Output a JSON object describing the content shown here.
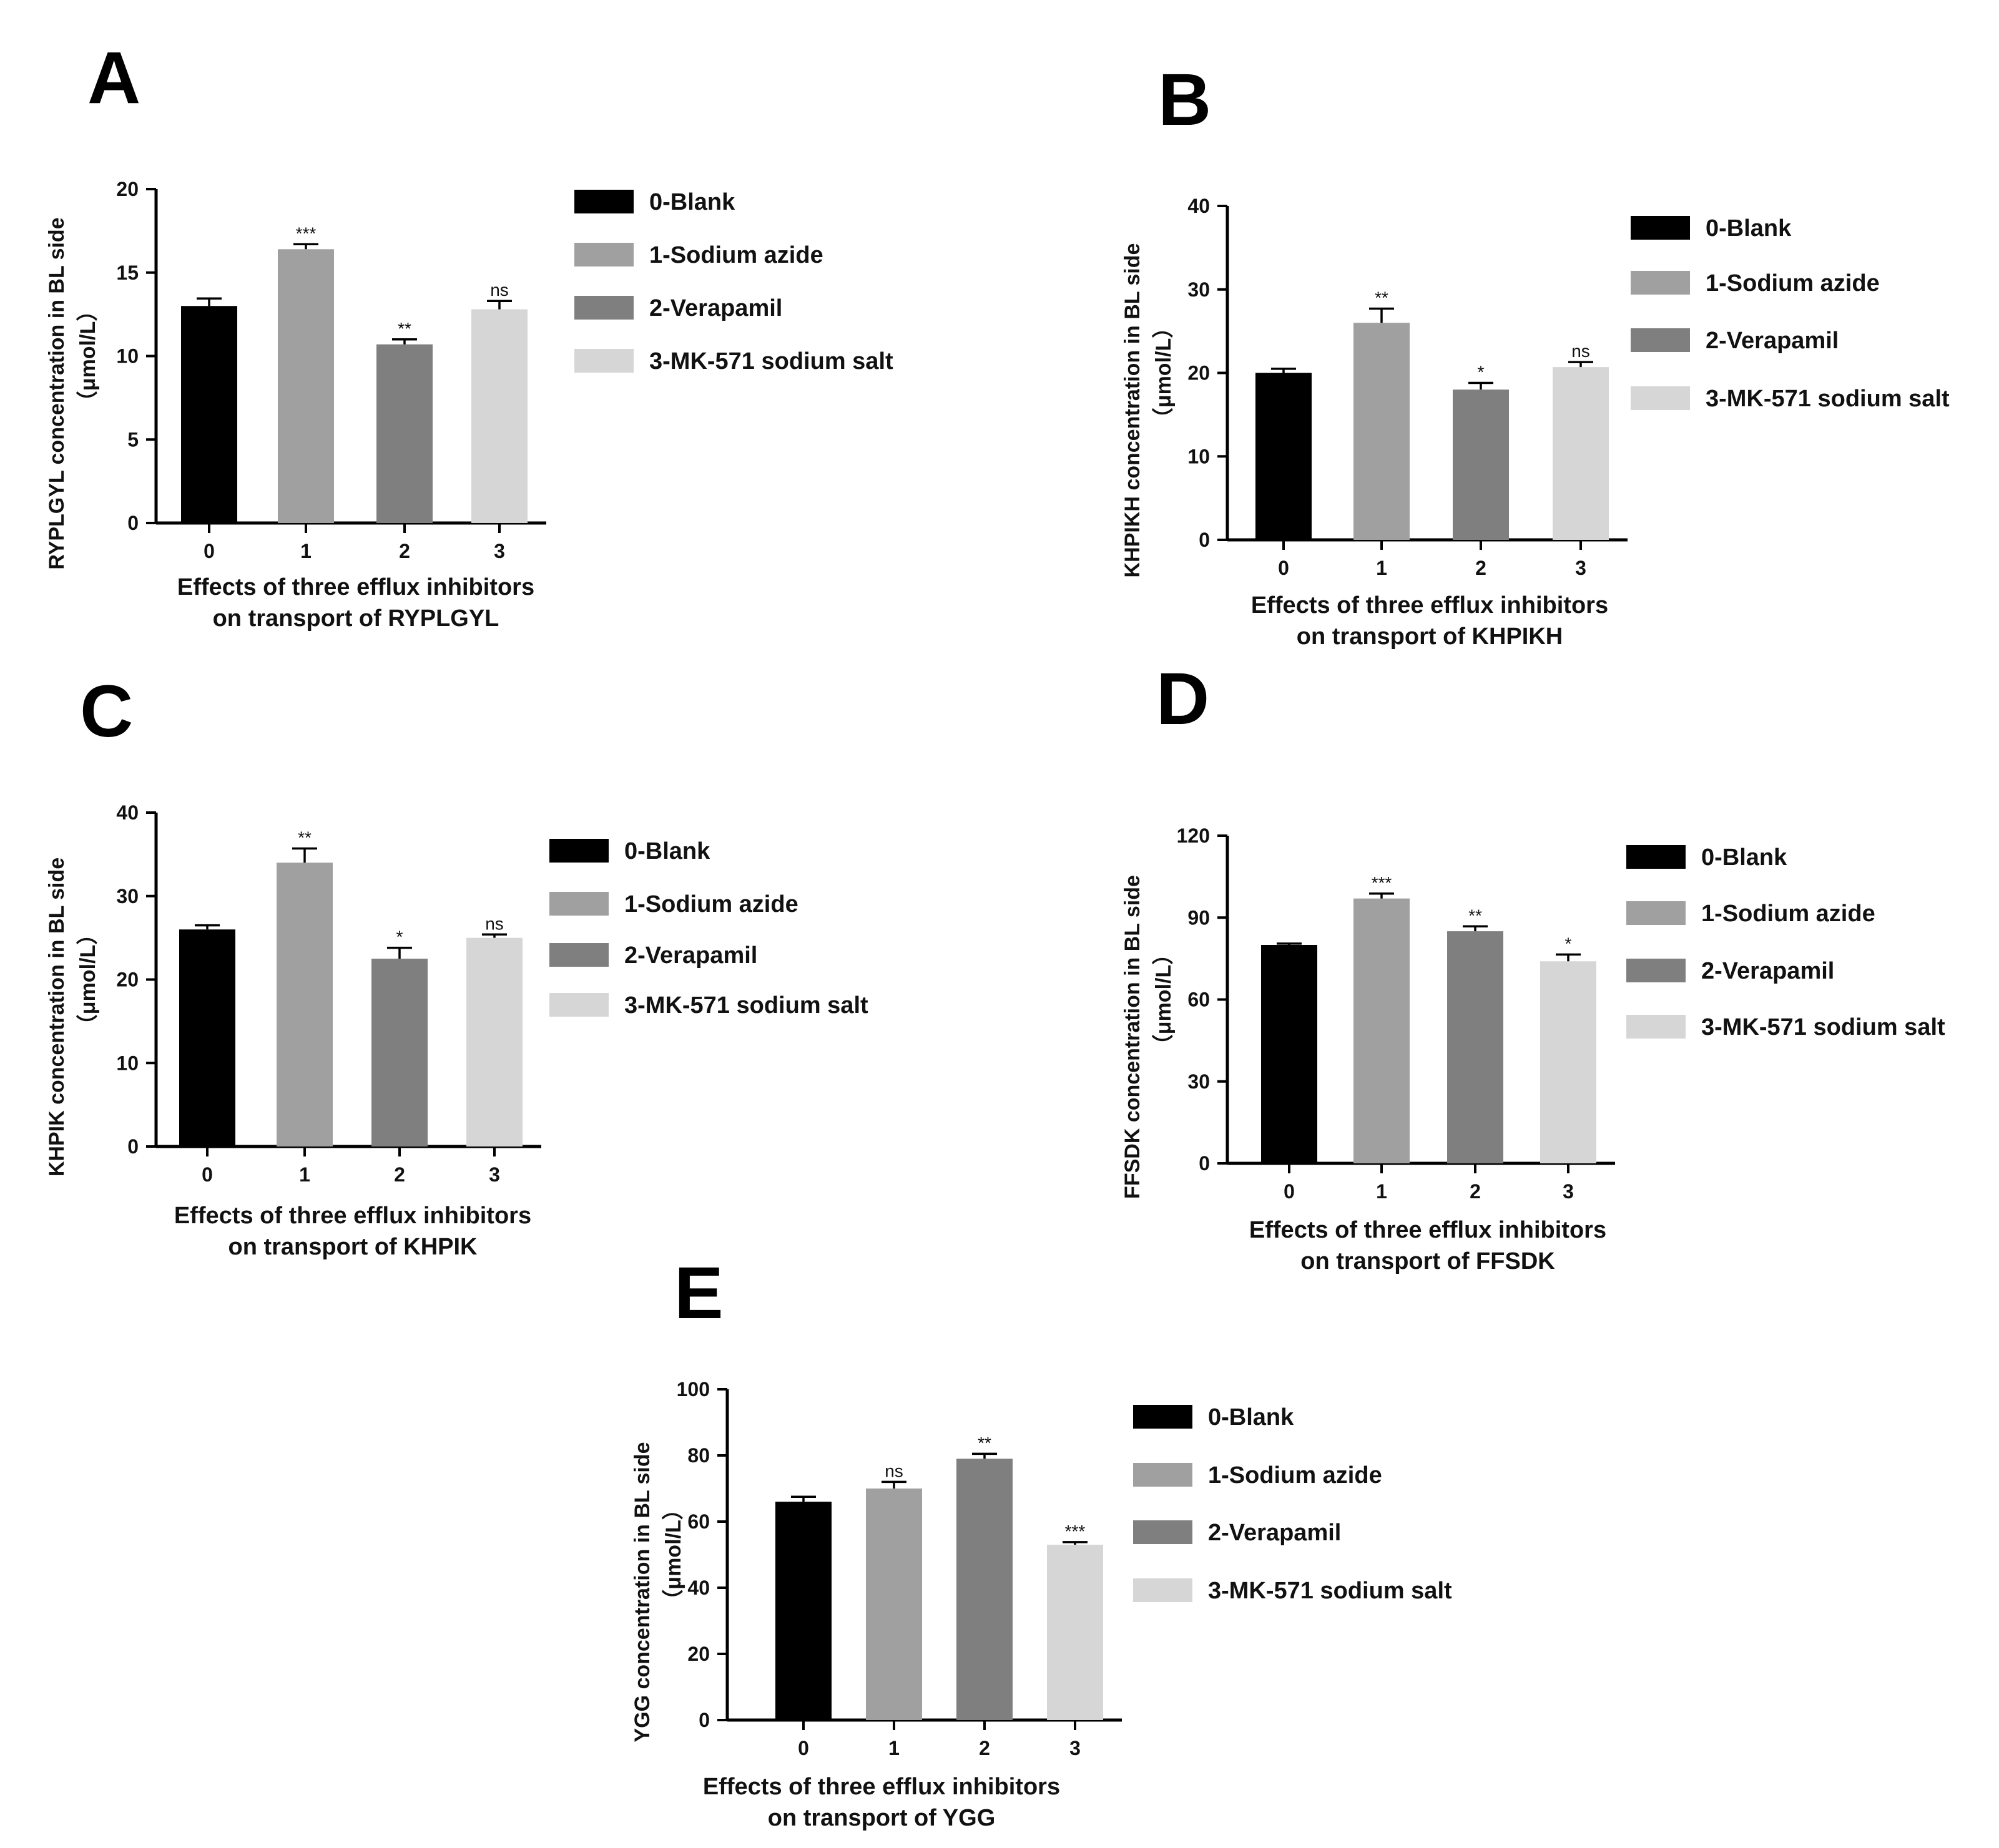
{
  "colors": {
    "blank": "#000000",
    "sodium_azide": "#a0a0a0",
    "verapamil": "#7f7f7f",
    "mk571": "#d6d6d6"
  },
  "chart_data": [
    {
      "type": "bar",
      "panel": "A",
      "categories": [
        "0",
        "1",
        "2",
        "3"
      ],
      "values": [
        13.0,
        16.4,
        10.7,
        12.8
      ],
      "errors": [
        0.45,
        0.3,
        0.3,
        0.5
      ],
      "significance": [
        "",
        "***",
        "**",
        "ns"
      ],
      "ylabel": [
        "RYPLGYL concentration in BL side",
        "（μmol/L）"
      ],
      "xlabel": [
        "Effects of three efflux inhibitors",
        "on transport of RYPLGYL"
      ],
      "ylim": [
        0,
        20
      ],
      "yticks": [
        "0",
        "5",
        "10",
        "15",
        "20"
      ],
      "legend": [
        "0-Blank",
        "1-Sodium azide",
        "2-Verapamil",
        "3-MK-571 sodium salt"
      ]
    },
    {
      "type": "bar",
      "panel": "B",
      "categories": [
        "0",
        "1",
        "2",
        "3"
      ],
      "values": [
        20.0,
        26.0,
        18.0,
        20.7
      ],
      "errors": [
        0.5,
        1.7,
        0.8,
        0.6
      ],
      "significance": [
        "",
        "**",
        "*",
        "ns"
      ],
      "ylabel": [
        "KHPIKH concentration in BL side",
        "（μmol/L）"
      ],
      "xlabel": [
        "Effects of three efflux inhibitors",
        "on transport of KHPIKH"
      ],
      "ylim": [
        0,
        40
      ],
      "yticks": [
        "0",
        "10",
        "20",
        "30",
        "40"
      ],
      "legend": [
        "0-Blank",
        "1-Sodium azide",
        "2-Verapamil",
        "3-MK-571 sodium salt"
      ]
    },
    {
      "type": "bar",
      "panel": "C",
      "categories": [
        "0",
        "1",
        "2",
        "3"
      ],
      "values": [
        26.0,
        34.0,
        22.5,
        25.0
      ],
      "errors": [
        0.5,
        1.7,
        1.3,
        0.4
      ],
      "significance": [
        "",
        "**",
        "*",
        "ns"
      ],
      "ylabel": [
        "KHPIK concentration in BL side",
        "（μmol/L）"
      ],
      "xlabel": [
        "Effects of three efflux inhibitors",
        "on transport of KHPIK"
      ],
      "ylim": [
        0,
        40
      ],
      "yticks": [
        "0",
        "10",
        "20",
        "30",
        "40"
      ],
      "legend": [
        "0-Blank",
        "1-Sodium azide",
        "2-Verapamil",
        "3-MK-571 sodium salt"
      ]
    },
    {
      "type": "bar",
      "panel": "D",
      "categories": [
        "0",
        "1",
        "2",
        "3"
      ],
      "values": [
        80.0,
        97.0,
        85.0,
        74.0
      ],
      "errors": [
        0.5,
        1.8,
        1.8,
        2.5
      ],
      "significance": [
        "",
        "***",
        "**",
        "*"
      ],
      "ylabel": [
        "FFSDK concentration in BL side",
        "（μmol/L）"
      ],
      "xlabel": [
        "Effects of three efflux inhibitors",
        "on transport of FFSDK"
      ],
      "ylim": [
        0,
        120
      ],
      "yticks": [
        "0",
        "30",
        "60",
        "90",
        "120"
      ],
      "legend": [
        "0-Blank",
        "1-Sodium azide",
        "2-Verapamil",
        "3-MK-571 sodium salt"
      ]
    },
    {
      "type": "bar",
      "panel": "E",
      "categories": [
        "0",
        "1",
        "2",
        "3"
      ],
      "values": [
        66.0,
        70.0,
        79.0,
        53.0
      ],
      "errors": [
        1.5,
        2.0,
        1.5,
        0.8
      ],
      "significance": [
        "",
        "ns",
        "**",
        "***"
      ],
      "ylabel": [
        "YGG concentration in BL side",
        "（μmol/L）"
      ],
      "xlabel": [
        "Effects of three efflux inhibitors",
        "on transport of YGG"
      ],
      "ylim": [
        0,
        100
      ],
      "yticks": [
        "0",
        "20",
        "40",
        "60",
        "80",
        "100"
      ],
      "legend": [
        "0-Blank",
        "1-Sodium azide",
        "2-Verapamil",
        "3-MK-571 sodium salt"
      ]
    }
  ]
}
